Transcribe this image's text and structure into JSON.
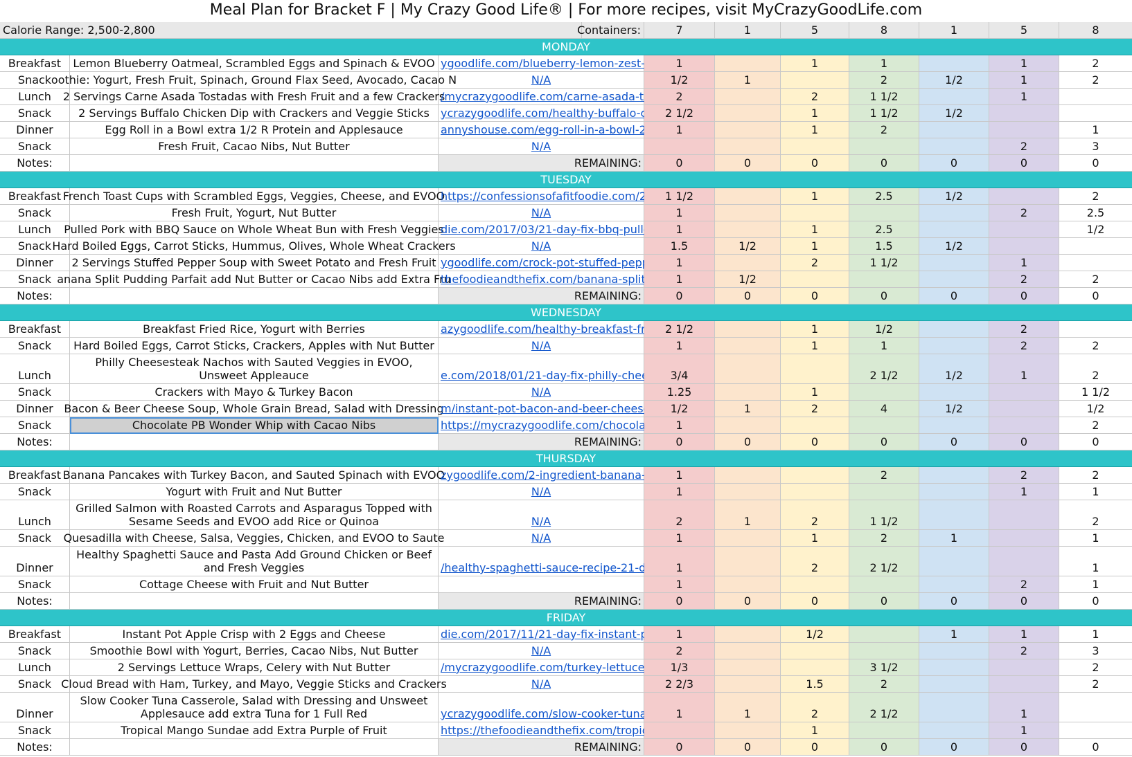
{
  "title": "Meal Plan for Bracket F | My Crazy Good Life® | For more recipes, visit MyCrazyGoodLife.com",
  "header": {
    "calorie_range": "Calorie Range: 2,500-2,800",
    "containers_label": "Containers:",
    "counts": [
      "7",
      "1",
      "5",
      "8",
      "1",
      "5",
      "8"
    ]
  },
  "colors": {
    "day_band": "#2ec4c9",
    "red": "#f4cccc",
    "orange": "#fce5cd",
    "yellow": "#fff2cc",
    "green": "#d9ead3",
    "blue": "#cfe2f3",
    "purple": "#d9d2e9",
    "link": "#1155cc"
  },
  "days": [
    {
      "name": "MONDAY",
      "rows": [
        {
          "meal": "Breakfast",
          "desc": "Lemon Blueberry Oatmeal, Scrambled Eggs and Spinach & EVOO",
          "link": "ygoodlife.com/blueberry-lemon-zest-ste",
          "c": [
            "1",
            "",
            "1",
            "1",
            "",
            "1",
            "2"
          ]
        },
        {
          "meal": "Snack",
          "desc": "oothie: Yogurt, Fresh Fruit, Spinach, Ground Flax Seed, Avocado, Cacao N",
          "link": "N/A",
          "c": [
            "1/2",
            "1",
            "",
            "2",
            "1/2",
            "1",
            "2"
          ]
        },
        {
          "meal": "Lunch",
          "desc": "2 Servings Carne Asada Tostadas with Fresh Fruit and a few Crackers",
          "link": "/mycrazygoodlife.com/carne-asada-tos",
          "c": [
            "2",
            "",
            "2",
            "1 1/2",
            "",
            "1",
            ""
          ]
        },
        {
          "meal": "Snack",
          "desc": "2 Servings Buffalo Chicken Dip with Crackers and Veggie Sticks",
          "link": "ycrazygoodlife.com/healthy-buffalo-chi",
          "c": [
            "2 1/2",
            "",
            "1",
            "1 1/2",
            "1/2",
            "",
            ""
          ]
        },
        {
          "meal": "Dinner",
          "desc": "Egg Roll in a Bowl extra 1/2 R Protein and Applesauce",
          "link": "annyshouse.com/egg-roll-in-a-bowl-21-",
          "c": [
            "1",
            "",
            "1",
            "2",
            "",
            "",
            "1"
          ]
        },
        {
          "meal": "Snack",
          "desc": "Fresh Fruit, Cacao Nibs, Nut Butter",
          "link": "N/A",
          "c": [
            "",
            "",
            "",
            "",
            "",
            "2",
            "3"
          ]
        }
      ]
    },
    {
      "name": "TUESDAY",
      "rows": [
        {
          "meal": "Breakfast",
          "desc": "French Toast Cups with Scrambled Eggs, Veggies, Cheese, and EVOO",
          "link": "https://confessionsofafitfoodie.com/201",
          "c": [
            "1 1/2",
            "",
            "1",
            "2.5",
            "1/2",
            "",
            "2"
          ]
        },
        {
          "meal": "Snack",
          "desc": "Fresh Fruit, Yogurt, Nut Butter",
          "link": "N/A",
          "c": [
            "1",
            "",
            "",
            "",
            "",
            "2",
            "2.5"
          ]
        },
        {
          "meal": "Lunch",
          "desc": "Pulled Pork with BBQ Sauce on Whole Wheat Bun with Fresh Veggies",
          "link": "die.com/2017/03/21-day-fix-bbq-pulled-",
          "c": [
            "1",
            "",
            "1",
            "2.5",
            "",
            "",
            "1/2"
          ]
        },
        {
          "meal": "Snack",
          "desc": "Hard Boiled Eggs, Carrot Sticks, Hummus, Olives, Whole Wheat Crackers",
          "link": "N/A",
          "c": [
            "1.5",
            "1/2",
            "1",
            "1.5",
            "1/2",
            "",
            ""
          ]
        },
        {
          "meal": "Dinner",
          "desc": "2 Servings Stuffed Pepper Soup with Sweet Potato and Fresh Fruit",
          "link": "ygoodlife.com/crock-pot-stuffed-peppe",
          "c": [
            "1",
            "",
            "2",
            "1 1/2",
            "",
            "1",
            ""
          ]
        },
        {
          "meal": "Snack",
          "desc": "anana Split Pudding Parfait add Nut Butter or Cacao Nibs add Extra Fru",
          "link": "thefoodieandthefix.com/banana-split-pu",
          "c": [
            "1",
            "1/2",
            "",
            "",
            "",
            "2",
            "2"
          ]
        }
      ]
    },
    {
      "name": "WEDNESDAY",
      "rows": [
        {
          "meal": "Breakfast",
          "desc": "Breakfast Fried Rice, Yogurt with Berries",
          "link": "azygoodlife.com/healthy-breakfast-fried",
          "c": [
            "2 1/2",
            "",
            "1",
            "1/2",
            "",
            "2",
            ""
          ]
        },
        {
          "meal": "Snack",
          "desc": "Hard Boiled Eggs, Carrot Sticks, Crackers, Apples with Nut Butter",
          "link": "N/A",
          "c": [
            "1",
            "",
            "1",
            "1",
            "",
            "2",
            "2"
          ]
        },
        {
          "meal": "Lunch",
          "desc": "Philly Cheesesteak Nachos with Sauted Veggies in EVOO, Unsweet Appleauce",
          "link": "e.com/2018/01/21-day-fix-philly-cheeses",
          "c": [
            "3/4",
            "",
            "",
            "2 1/2",
            "1/2",
            "1",
            "2"
          ],
          "tall": true
        },
        {
          "meal": "Snack",
          "desc": "Crackers with Mayo & Turkey Bacon",
          "link": "N/A",
          "c": [
            "1.25",
            "",
            "1",
            "",
            "",
            "",
            "1 1/2"
          ]
        },
        {
          "meal": "Dinner",
          "desc": "Bacon & Beer Cheese Soup, Whole Grain Bread, Salad with Dressing",
          "link": "m/instant-pot-bacon-and-beer-cheese-",
          "c": [
            "1/2",
            "1",
            "2",
            "4",
            "1/2",
            "",
            "1/2"
          ]
        },
        {
          "meal": "Snack",
          "desc": "Chocolate PB Wonder Whip with Cacao Nibs",
          "link": "https://mycrazygoodlife.com/chocolate",
          "c": [
            "1",
            "",
            "",
            "",
            "",
            "",
            "2"
          ],
          "selected": true
        }
      ]
    },
    {
      "name": "THURSDAY",
      "rows": [
        {
          "meal": "Breakfast",
          "desc": "Banana Pancakes with Turkey Bacon, and Sauted Spinach with EVOO",
          "link": "zygoodlife.com/2-ingredient-banana-pa",
          "c": [
            "1",
            "",
            "",
            "2",
            "",
            "2",
            "2"
          ]
        },
        {
          "meal": "Snack",
          "desc": "Yogurt with Fruit and Nut Butter",
          "link": "N/A",
          "c": [
            "1",
            "",
            "",
            "",
            "",
            "1",
            "1"
          ]
        },
        {
          "meal": "Lunch",
          "desc": "Grilled Salmon with Roasted Carrots and Asparagus Topped with Sesame Seeds and EVOO add Rice or Quinoa",
          "link": "N/A",
          "c": [
            "2",
            "1",
            "2",
            "1 1/2",
            "",
            "",
            "2"
          ],
          "tall": true
        },
        {
          "meal": "Snack",
          "desc": "Quesadilla with Cheese, Salsa, Veggies, Chicken, and EVOO to Saute",
          "link": "N/A",
          "c": [
            "1",
            "",
            "1",
            "2",
            "1",
            "",
            "1"
          ]
        },
        {
          "meal": "Dinner",
          "desc": "Healthy Spaghetti Sauce and Pasta Add Ground Chicken or Beef and Fresh Veggies",
          "link": "/healthy-spaghetti-sauce-recipe-21-day",
          "c": [
            "1",
            "",
            "2",
            "2 1/2",
            "",
            "",
            "1"
          ],
          "tall": true
        },
        {
          "meal": "Snack",
          "desc": "Cottage Cheese with Fruit and Nut Butter",
          "link": "",
          "c": [
            "1",
            "",
            "",
            "",
            "",
            "2",
            "1"
          ]
        }
      ]
    },
    {
      "name": "FRIDAY",
      "rows": [
        {
          "meal": "Breakfast",
          "desc": "Instant Pot Apple Crisp with 2 Eggs and Cheese",
          "link": "die.com/2017/11/21-day-fix-instant-pot-a",
          "c": [
            "1",
            "",
            "1/2",
            "",
            "1",
            "1",
            "1"
          ]
        },
        {
          "meal": "Snack",
          "desc": "Smoothie Bowl with Yogurt, Berries, Cacao Nibs, Nut Butter",
          "link": "N/A",
          "c": [
            "2",
            "",
            "",
            "",
            "",
            "2",
            "3"
          ]
        },
        {
          "meal": "Lunch",
          "desc": "2 Servings Lettuce Wraps, Celery with Nut Butter",
          "link": "/mycrazygoodlife.com/turkey-lettuce-w",
          "c": [
            "1/3",
            "",
            "",
            "3 1/2",
            "",
            "",
            "2"
          ]
        },
        {
          "meal": "Snack",
          "desc": "Cloud Bread with Ham, Turkey, and Mayo, Veggie Sticks and Crackers",
          "link": "N/A",
          "c": [
            "2 2/3",
            "",
            "1.5",
            "2",
            "",
            "",
            "2"
          ]
        },
        {
          "meal": "Dinner",
          "desc": "Slow Cooker Tuna Casserole, Salad with Dressing and Unsweet Applesauce add extra Tuna for 1 Full Red",
          "link": "ycrazygoodlife.com/slow-cooker-tuna-c",
          "c": [
            "1",
            "1",
            "2",
            "2 1/2",
            "",
            "1",
            ""
          ],
          "tall": true
        },
        {
          "meal": "Snack",
          "desc": "Tropical Mango Sundae add Extra Purple of Fruit",
          "link": "https://thefoodieandthefix.com/tropical",
          "c": [
            "",
            "",
            "1",
            "",
            "",
            "1",
            ""
          ]
        }
      ]
    }
  ],
  "notes_label": "Notes:",
  "remaining_label": "REMAINING:",
  "remaining_values": [
    "0",
    "0",
    "0",
    "0",
    "0",
    "0",
    "0"
  ]
}
